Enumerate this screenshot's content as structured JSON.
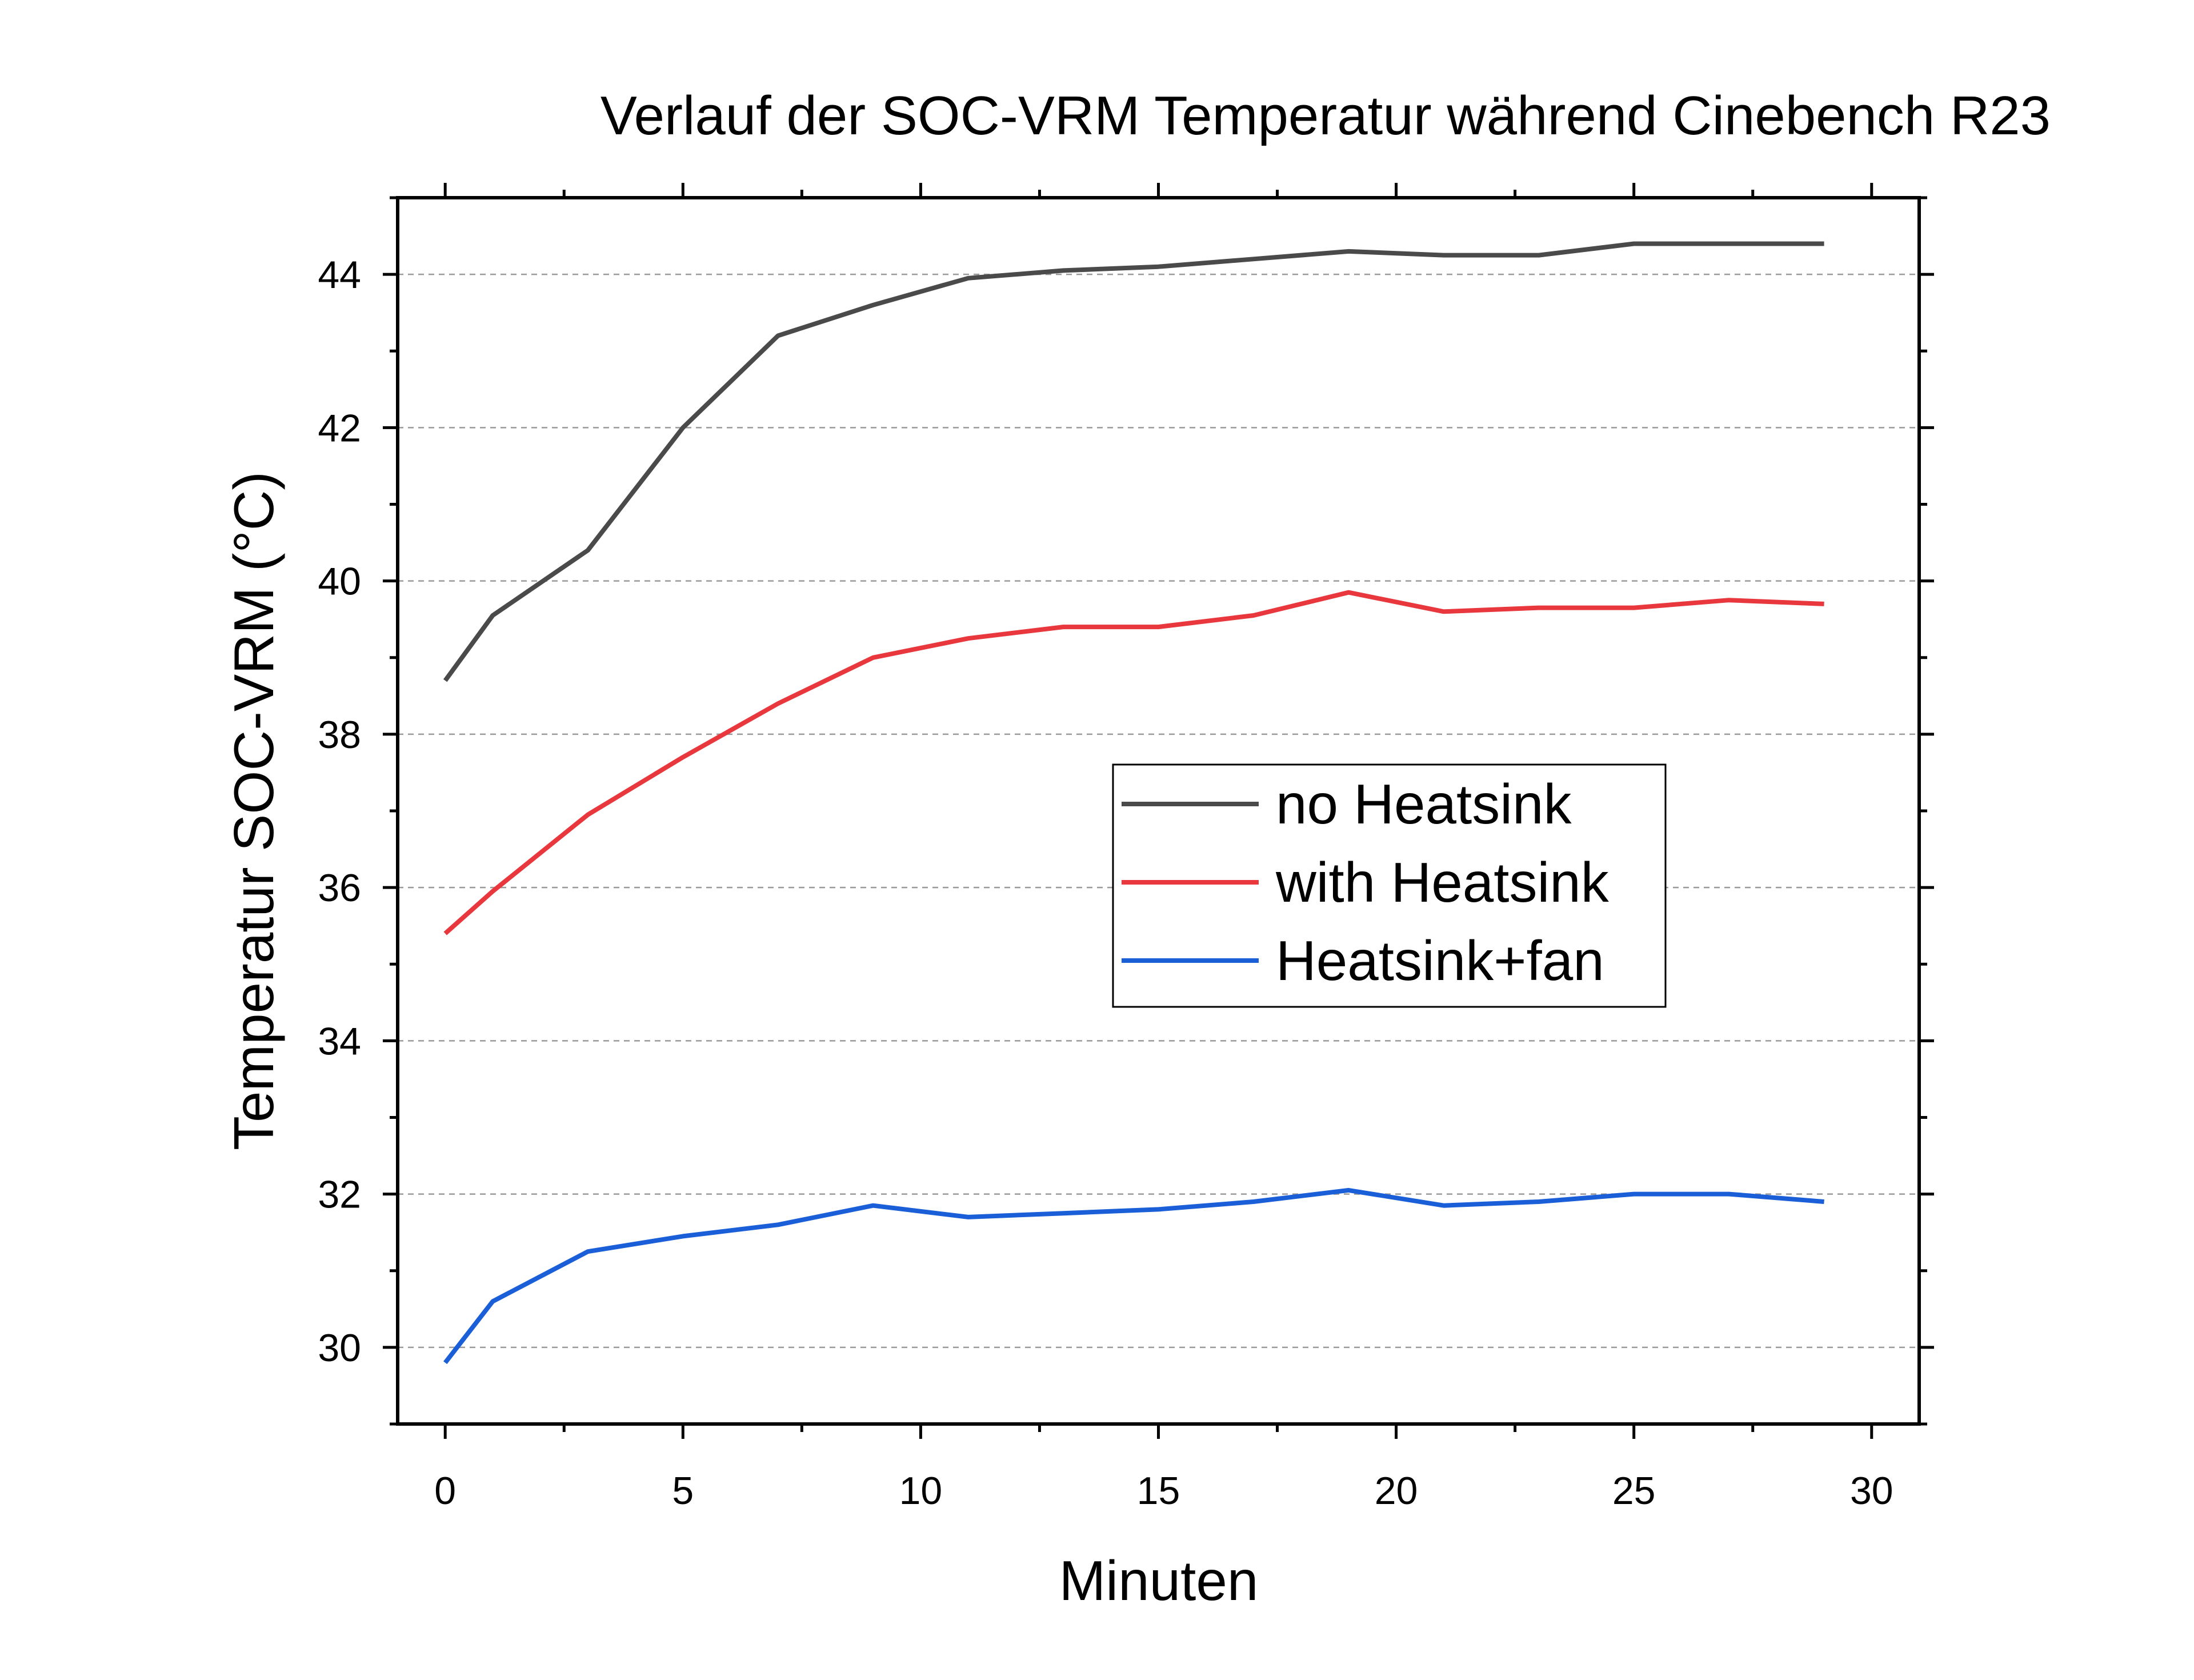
{
  "chart_data": {
    "type": "line",
    "title": "Verlauf der SOC-VRM Temperatur während Cinebench R23",
    "xlabel": "Minuten",
    "ylabel": "Temperatur SOC-VRM (°C)",
    "xlim": [
      -1,
      31
    ],
    "ylim": [
      29,
      45
    ],
    "x_ticks": [
      0,
      5,
      10,
      15,
      20,
      25,
      30
    ],
    "y_ticks": [
      30,
      32,
      34,
      36,
      38,
      40,
      42,
      44
    ],
    "x_tick_labels": [
      "0",
      "5",
      "10",
      "15",
      "20",
      "25",
      "30"
    ],
    "y_tick_labels": [
      "30",
      "32",
      "34",
      "36",
      "38",
      "40",
      "42",
      "44"
    ],
    "grid": "horizontal dashed",
    "legend_position": "center-right",
    "x": [
      0,
      1,
      3,
      5,
      7,
      9,
      11,
      13,
      15,
      17,
      19,
      21,
      23,
      25,
      27,
      29
    ],
    "series": [
      {
        "name": "no Heatsink",
        "color": "#4a4a4a",
        "values": [
          38.7,
          39.55,
          40.4,
          42.0,
          43.2,
          43.6,
          43.95,
          44.05,
          44.1,
          44.2,
          44.3,
          44.25,
          44.25,
          44.4,
          44.4,
          44.4
        ]
      },
      {
        "name": "with Heatsink",
        "color": "#e8383d",
        "values": [
          35.4,
          35.95,
          36.95,
          37.7,
          38.4,
          39.0,
          39.25,
          39.4,
          39.4,
          39.55,
          39.85,
          39.6,
          39.65,
          39.65,
          39.75,
          39.7
        ]
      },
      {
        "name": "Heatsink+fan",
        "color": "#1a5fd8",
        "values": [
          29.8,
          30.6,
          31.25,
          31.45,
          31.6,
          31.85,
          31.7,
          31.75,
          31.8,
          31.9,
          32.05,
          31.85,
          31.9,
          32.0,
          32.0,
          31.9
        ]
      }
    ]
  }
}
